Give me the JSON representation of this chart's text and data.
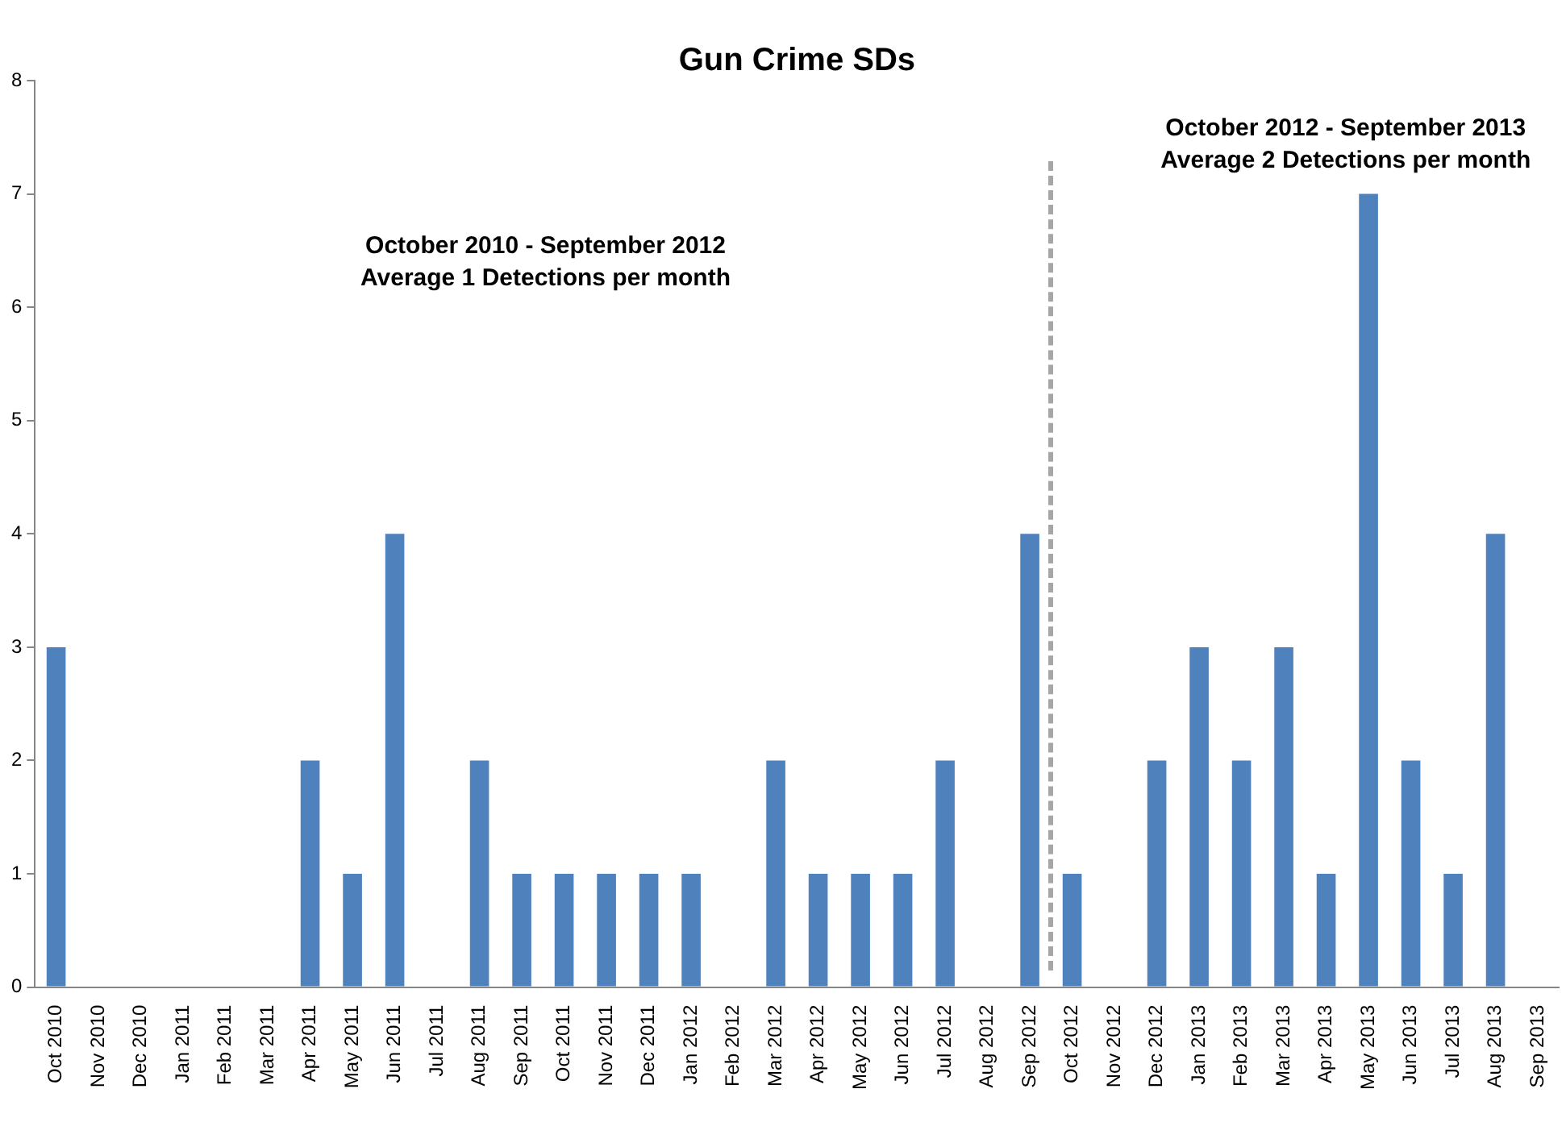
{
  "chart_data": {
    "type": "bar",
    "title": "Gun Crime SDs",
    "categories": [
      "Oct 2010",
      "Nov 2010",
      "Dec 2010",
      "Jan 2011",
      "Feb 2011",
      "Mar 2011",
      "Apr 2011",
      "May 2011",
      "Jun 2011",
      "Jul 2011",
      "Aug 2011",
      "Sep 2011",
      "Oct 2011",
      "Nov 2011",
      "Dec 2011",
      "Jan 2012",
      "Feb 2012",
      "Mar 2012",
      "Apr 2012",
      "May 2012",
      "Jun 2012",
      "Jul 2012",
      "Aug 2012",
      "Sep 2012",
      "Oct 2012",
      "Nov 2012",
      "Dec 2012",
      "Jan 2013",
      "Feb 2013",
      "Mar 2013",
      "Apr 2013",
      "May 2013",
      "Jun 2013",
      "Jul 2013",
      "Aug 2013",
      "Sep 2013"
    ],
    "values": [
      3,
      0,
      0,
      0,
      0,
      0,
      2,
      1,
      4,
      0,
      2,
      1,
      1,
      1,
      1,
      1,
      0,
      2,
      1,
      1,
      1,
      2,
      0,
      4,
      1,
      0,
      2,
      3,
      2,
      3,
      1,
      7,
      2,
      1,
      4,
      0
    ],
    "color": "#4f81bd",
    "ylim": [
      0,
      8
    ],
    "yticks": [
      0,
      1,
      2,
      3,
      4,
      5,
      6,
      7,
      8
    ],
    "grid": false,
    "legend": false,
    "annotations": [
      "October 2010 - September 2012\nAverage 1 Detections per month",
      "October 2012 - September 2013\nAverage 2 Detections per month"
    ]
  }
}
